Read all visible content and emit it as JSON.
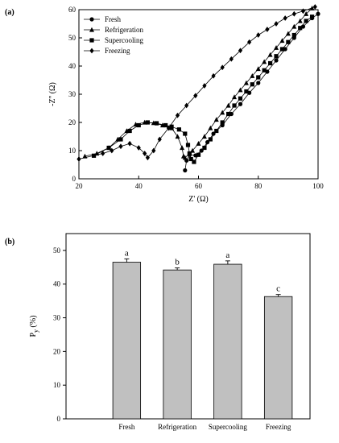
{
  "chart_data": [
    {
      "panel": "(a)",
      "type": "scatter",
      "xlabel": "Z' (Ω)",
      "ylabel": "-Z'' (Ω)",
      "xlim": [
        20,
        100
      ],
      "ylim": [
        0,
        60
      ],
      "xticks": [
        20,
        40,
        60,
        80,
        100
      ],
      "yticks": [
        0,
        10,
        20,
        30,
        40,
        50,
        60
      ],
      "legend_position": "top-left",
      "series": [
        {
          "name": "Fresh",
          "marker": "circle",
          "points": [
            [
              55.5,
              3
            ],
            [
              56,
              6.5
            ],
            [
              57,
              8.5
            ],
            [
              59,
              8.3
            ],
            [
              61,
              10
            ],
            [
              63,
              13
            ],
            [
              65,
              16
            ],
            [
              68,
              19
            ],
            [
              71,
              23
            ],
            [
              74,
              26.5
            ],
            [
              77,
              30.5
            ],
            [
              80,
              34
            ],
            [
              83,
              38
            ],
            [
              86,
              42
            ],
            [
              89,
              46
            ],
            [
              92,
              50
            ],
            [
              95,
              54
            ],
            [
              98,
              57
            ],
            [
              100,
              58.5
            ]
          ]
        },
        {
          "name": "Refrigeration",
          "marker": "triangle",
          "points": [
            [
              22,
              8
            ],
            [
              26,
              9
            ],
            [
              30,
              11
            ],
            [
              33,
              14
            ],
            [
              36,
              17
            ],
            [
              39,
              19.3
            ],
            [
              42,
              20
            ],
            [
              45,
              19.8
            ],
            [
              48,
              19
            ],
            [
              51,
              18
            ],
            [
              53,
              15
            ],
            [
              54.5,
              11
            ],
            [
              55,
              8
            ],
            [
              55.5,
              7.5
            ],
            [
              58,
              10
            ],
            [
              60,
              12.5
            ],
            [
              62,
              15
            ],
            [
              64,
              18
            ],
            [
              66,
              21
            ],
            [
              68,
              23.5
            ],
            [
              70,
              26
            ],
            [
              72,
              29
            ],
            [
              74,
              31.5
            ],
            [
              76,
              34
            ],
            [
              78,
              36.5
            ],
            [
              80,
              39
            ],
            [
              82,
              41.5
            ],
            [
              84,
              44
            ],
            [
              86,
              46.5
            ],
            [
              88,
              49
            ],
            [
              90,
              51.5
            ],
            [
              92,
              54
            ],
            [
              94,
              56
            ],
            [
              96,
              58.5
            ],
            [
              98,
              60.5
            ]
          ]
        },
        {
          "name": "Supercooling",
          "marker": "square",
          "points": [
            [
              25,
              8.2
            ],
            [
              30,
              11
            ],
            [
              34,
              14
            ],
            [
              37,
              17
            ],
            [
              40,
              19
            ],
            [
              43,
              20
            ],
            [
              46,
              19.7
            ],
            [
              49,
              19
            ],
            [
              51,
              18.5
            ],
            [
              53.5,
              17.5
            ],
            [
              55.5,
              16
            ],
            [
              56.5,
              12
            ],
            [
              57,
              9
            ],
            [
              57.5,
              7
            ],
            [
              58.5,
              6
            ],
            [
              60,
              8.5
            ],
            [
              62,
              11
            ],
            [
              64,
              14
            ],
            [
              66,
              17
            ],
            [
              68,
              20
            ],
            [
              70,
              23
            ],
            [
              72,
              26
            ],
            [
              74,
              28.5
            ],
            [
              76,
              31
            ],
            [
              78,
              33.5
            ],
            [
              80,
              36
            ],
            [
              82,
              38.5
            ],
            [
              84,
              41
            ],
            [
              86,
              43.5
            ],
            [
              88,
              46
            ],
            [
              90,
              48.5
            ],
            [
              92,
              51
            ],
            [
              94,
              53.5
            ],
            [
              96,
              56
            ],
            [
              98,
              57.5
            ]
          ]
        },
        {
          "name": "Freezing",
          "marker": "diamond",
          "points": [
            [
              20,
              7
            ],
            [
              28,
              9
            ],
            [
              31,
              10
            ],
            [
              34,
              11.5
            ],
            [
              37,
              12.5
            ],
            [
              40,
              11
            ],
            [
              42,
              9
            ],
            [
              43,
              7.5
            ],
            [
              45,
              10
            ],
            [
              47,
              14
            ],
            [
              50,
              18
            ],
            [
              53,
              22.5
            ],
            [
              56,
              26
            ],
            [
              59,
              29.5
            ],
            [
              62,
              33
            ],
            [
              65,
              36.5
            ],
            [
              68,
              39.5
            ],
            [
              71,
              42.5
            ],
            [
              74,
              45.5
            ],
            [
              77,
              48.5
            ],
            [
              80,
              51
            ],
            [
              83,
              53
            ],
            [
              86,
              55
            ],
            [
              89,
              57
            ],
            [
              92,
              58.5
            ],
            [
              95,
              59.5
            ],
            [
              99,
              61
            ]
          ]
        }
      ]
    },
    {
      "panel": "(b)",
      "type": "bar",
      "categories": [
        "Fresh",
        "Refrigeration",
        "Supercooling",
        "Freezing"
      ],
      "values": [
        46.5,
        44.2,
        45.9,
        36.3
      ],
      "errors": [
        1.0,
        0.6,
        1.0,
        0.6
      ],
      "significance_letters": [
        "a",
        "b",
        "a",
        "c"
      ],
      "xlabel": "",
      "ylabel_main": "P",
      "ylabel_sub": "y",
      "ylabel_unit": " (%)",
      "ylim": [
        0,
        55
      ],
      "yticks": [
        0,
        10,
        20,
        30,
        40,
        50
      ],
      "bar_color": "#c0c0c0"
    }
  ]
}
